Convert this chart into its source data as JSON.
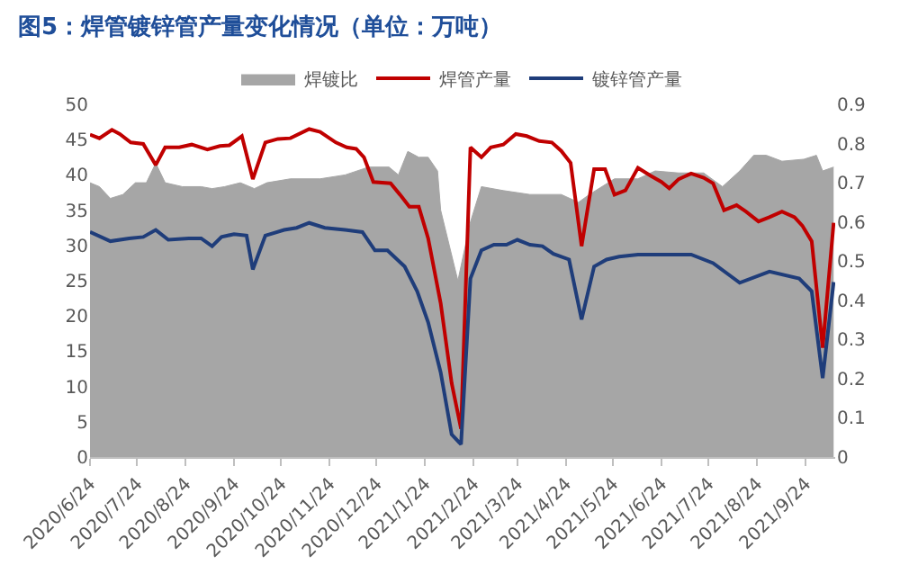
{
  "chart_data": {
    "type": "line",
    "title": "图5：焊管镀锌管产量变化情况（单位：万吨）",
    "xlim": [
      "2020-06-24",
      "2021-10-13"
    ],
    "xticks": [
      {
        "value": "2020-06-24",
        "label": "2020/6/24"
      },
      {
        "value": "2020-07-24",
        "label": "2020/7/24"
      },
      {
        "value": "2020-08-24",
        "label": "2020/8/24"
      },
      {
        "value": "2020-09-24",
        "label": "2020/9/24"
      },
      {
        "value": "2020-10-24",
        "label": "2020/10/24"
      },
      {
        "value": "2020-11-24",
        "label": "2020/11/24"
      },
      {
        "value": "2020-12-24",
        "label": "2020/12/24"
      },
      {
        "value": "2021-01-24",
        "label": "2021/1/24"
      },
      {
        "value": "2021-02-24",
        "label": "2021/2/24"
      },
      {
        "value": "2021-03-24",
        "label": "2021/3/24"
      },
      {
        "value": "2021-04-24",
        "label": "2021/4/24"
      },
      {
        "value": "2021-05-24",
        "label": "2021/5/24"
      },
      {
        "value": "2021-06-24",
        "label": "2021/6/24"
      },
      {
        "value": "2021-07-24",
        "label": "2021/7/24"
      },
      {
        "value": "2021-08-24",
        "label": "2021/8/24"
      },
      {
        "value": "2021-09-24",
        "label": "2021/9/24"
      }
    ],
    "ylim": [
      0,
      50
    ],
    "yticks": [
      0,
      5,
      10,
      15,
      20,
      25,
      30,
      35,
      40,
      45,
      50
    ],
    "y2lim": [
      0,
      0.9
    ],
    "y2ticks": [
      0,
      0.1,
      0.2,
      0.3,
      0.4,
      0.5,
      0.6,
      0.7,
      0.8,
      0.9
    ],
    "legend": "top",
    "marker": "none",
    "line_style": "solid",
    "series": [
      {
        "name": "焊镀比",
        "type": "area",
        "axis": "y2",
        "color": "#a6a6a6",
        "x": [
          "2020-06-24",
          "2020-06-30",
          "2020-07-07",
          "2020-07-15",
          "2020-07-23",
          "2020-07-30",
          "2020-08-05",
          "2020-08-11",
          "2020-08-22",
          "2020-09-03",
          "2020-09-10",
          "2020-09-18",
          "2020-09-28",
          "2020-10-07",
          "2020-10-15",
          "2020-10-30",
          "2020-11-18",
          "2020-12-04",
          "2020-12-19",
          "2021-01-01",
          "2021-01-07",
          "2021-01-13",
          "2021-01-20",
          "2021-01-26",
          "2021-02-01",
          "2021-02-03",
          "2021-02-14",
          "2021-02-22",
          "2021-03-01",
          "2021-03-15",
          "2021-04-01",
          "2021-04-21",
          "2021-05-02",
          "2021-05-09",
          "2021-05-25",
          "2021-06-09",
          "2021-06-20",
          "2021-07-05",
          "2021-07-21",
          "2021-08-02",
          "2021-08-13",
          "2021-08-22",
          "2021-08-30",
          "2021-09-09",
          "2021-09-23",
          "2021-10-01",
          "2021-10-05",
          "2021-10-12"
        ],
        "values": [
          0.7,
          0.69,
          0.66,
          0.67,
          0.7,
          0.7,
          0.75,
          0.7,
          0.69,
          0.69,
          0.685,
          0.69,
          0.7,
          0.685,
          0.7,
          0.71,
          0.71,
          0.72,
          0.74,
          0.74,
          0.72,
          0.78,
          0.765,
          0.765,
          0.73,
          0.63,
          0.45,
          0.6,
          0.69,
          0.68,
          0.67,
          0.67,
          0.65,
          0.67,
          0.71,
          0.71,
          0.73,
          0.725,
          0.725,
          0.69,
          0.73,
          0.77,
          0.77,
          0.755,
          0.76,
          0.77,
          0.73,
          0.74
        ]
      },
      {
        "name": "焊管产量",
        "color": "#c00000",
        "x": [
          "2020-06-24",
          "2020-06-30",
          "2020-07-08",
          "2020-07-13",
          "2020-07-20",
          "2020-07-28",
          "2020-08-05",
          "2020-08-11",
          "2020-08-20",
          "2020-08-28",
          "2020-09-07",
          "2020-09-15",
          "2020-09-21",
          "2020-09-29",
          "2020-10-06",
          "2020-10-14",
          "2020-10-22",
          "2020-10-30",
          "2020-11-11",
          "2020-11-18",
          "2020-11-28",
          "2020-12-05",
          "2020-12-11",
          "2020-12-16",
          "2020-12-22",
          "2021-01-02",
          "2021-01-08",
          "2021-01-14",
          "2021-01-20",
          "2021-01-26",
          "2021-02-03",
          "2021-02-10",
          "2021-02-16",
          "2021-02-22",
          "2021-03-01",
          "2021-03-07",
          "2021-03-15",
          "2021-03-23",
          "2021-03-30",
          "2021-04-07",
          "2021-04-15",
          "2021-04-21",
          "2021-04-27",
          "2021-05-04",
          "2021-05-12",
          "2021-05-19",
          "2021-05-25",
          "2021-06-01",
          "2021-06-09",
          "2021-06-17",
          "2021-06-24",
          "2021-06-29",
          "2021-07-05",
          "2021-07-13",
          "2021-07-21",
          "2021-07-27",
          "2021-08-03",
          "2021-08-11",
          "2021-08-17",
          "2021-08-25",
          "2021-09-01",
          "2021-09-09",
          "2021-09-17",
          "2021-09-22",
          "2021-09-28",
          "2021-10-05",
          "2021-10-12"
        ],
        "values": [
          45.7,
          45.2,
          46.4,
          45.8,
          44.6,
          44.4,
          41.4,
          43.9,
          43.9,
          44.3,
          43.6,
          44.1,
          44.2,
          45.5,
          39.4,
          44.6,
          45.1,
          45.2,
          46.5,
          46.1,
          44.6,
          43.9,
          43.7,
          42.5,
          39.0,
          38.8,
          37.2,
          35.5,
          35.5,
          31.0,
          21.8,
          10.5,
          4.0,
          43.9,
          42.5,
          43.9,
          44.3,
          45.8,
          45.5,
          44.8,
          44.6,
          43.4,
          41.7,
          29.9,
          40.8,
          40.8,
          37.2,
          37.8,
          41.0,
          39.9,
          39.0,
          38.1,
          39.4,
          40.2,
          39.6,
          38.8,
          35.0,
          35.7,
          34.8,
          33.4,
          34.0,
          34.8,
          34.0,
          32.8,
          30.6,
          15.5,
          33.2
        ]
      },
      {
        "name": "镀锌管产量",
        "color": "#1f3d7a",
        "x": [
          "2020-06-24",
          "2020-07-07",
          "2020-07-19",
          "2020-07-28",
          "2020-08-05",
          "2020-08-13",
          "2020-08-26",
          "2020-09-03",
          "2020-09-10",
          "2020-09-16",
          "2020-09-24",
          "2020-10-02",
          "2020-10-06",
          "2020-10-14",
          "2020-10-26",
          "2020-11-03",
          "2020-11-11",
          "2020-11-21",
          "2020-12-04",
          "2020-12-15",
          "2020-12-23",
          "2020-12-31",
          "2021-01-11",
          "2021-01-19",
          "2021-01-26",
          "2021-02-03",
          "2021-02-10",
          "2021-02-16",
          "2021-02-22",
          "2021-03-01",
          "2021-03-09",
          "2021-03-17",
          "2021-03-24",
          "2021-04-01",
          "2021-04-09",
          "2021-04-16",
          "2021-04-26",
          "2021-05-04",
          "2021-05-12",
          "2021-05-20",
          "2021-05-28",
          "2021-06-09",
          "2021-07-13",
          "2021-07-27",
          "2021-08-13",
          "2021-09-01",
          "2021-09-20",
          "2021-09-28",
          "2021-10-05",
          "2021-10-12"
        ],
        "values": [
          31.9,
          30.6,
          31.0,
          31.2,
          32.2,
          30.8,
          31.0,
          31.0,
          29.9,
          31.2,
          31.6,
          31.4,
          26.6,
          31.4,
          32.2,
          32.5,
          33.2,
          32.5,
          32.2,
          31.9,
          29.3,
          29.3,
          27.0,
          23.5,
          19.1,
          12.0,
          3.2,
          1.8,
          25.3,
          29.3,
          30.1,
          30.1,
          30.8,
          30.1,
          29.9,
          28.8,
          28.0,
          19.5,
          27.0,
          28.0,
          28.4,
          28.7,
          28.7,
          27.5,
          24.7,
          26.3,
          25.3,
          23.5,
          11.2,
          24.8
        ]
      }
    ]
  }
}
